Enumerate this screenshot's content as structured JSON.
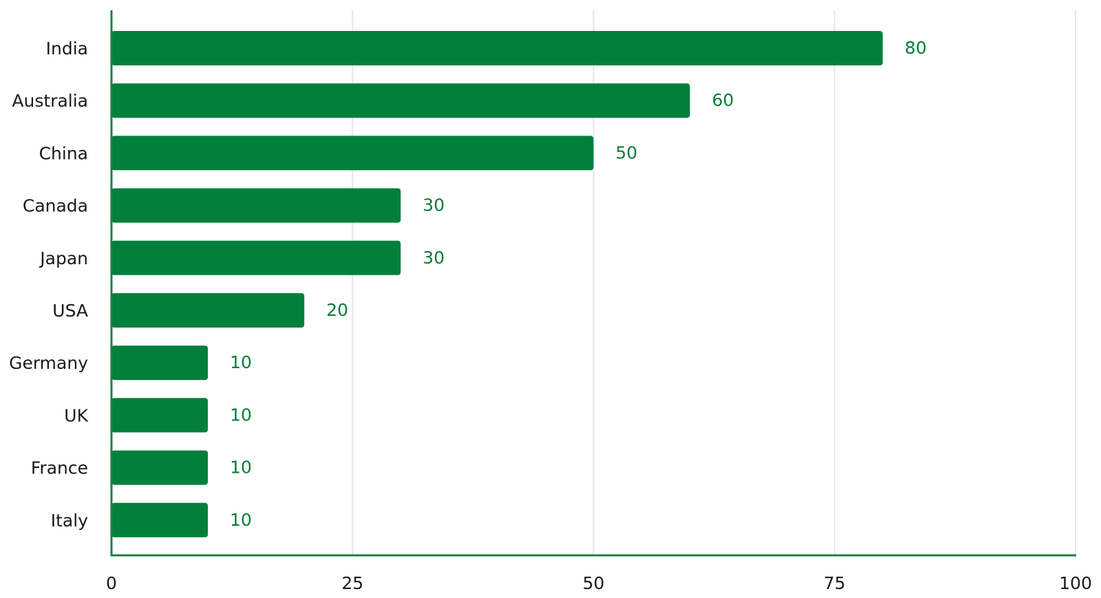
{
  "chart_data": {
    "type": "bar",
    "orientation": "horizontal",
    "title": "",
    "xlabel": "",
    "ylabel": "",
    "categories": [
      "India",
      "Australia",
      "China",
      "Canada",
      "Japan",
      "USA",
      "Germany",
      "UK",
      "France",
      "Italy"
    ],
    "values": [
      80,
      60,
      50,
      30,
      30,
      20,
      10,
      10,
      10,
      10
    ],
    "xlim": [
      0,
      100
    ],
    "xticks": [
      0,
      25,
      50,
      75,
      100
    ],
    "grid": "vertical",
    "legend": "none",
    "data_labels": true
  },
  "colors": {
    "bar": "#037f3c",
    "value_label": "#0a7d3a",
    "axis": "#1a7f3c",
    "grid": "#e6e6e6",
    "text": "#1a1a1a"
  }
}
